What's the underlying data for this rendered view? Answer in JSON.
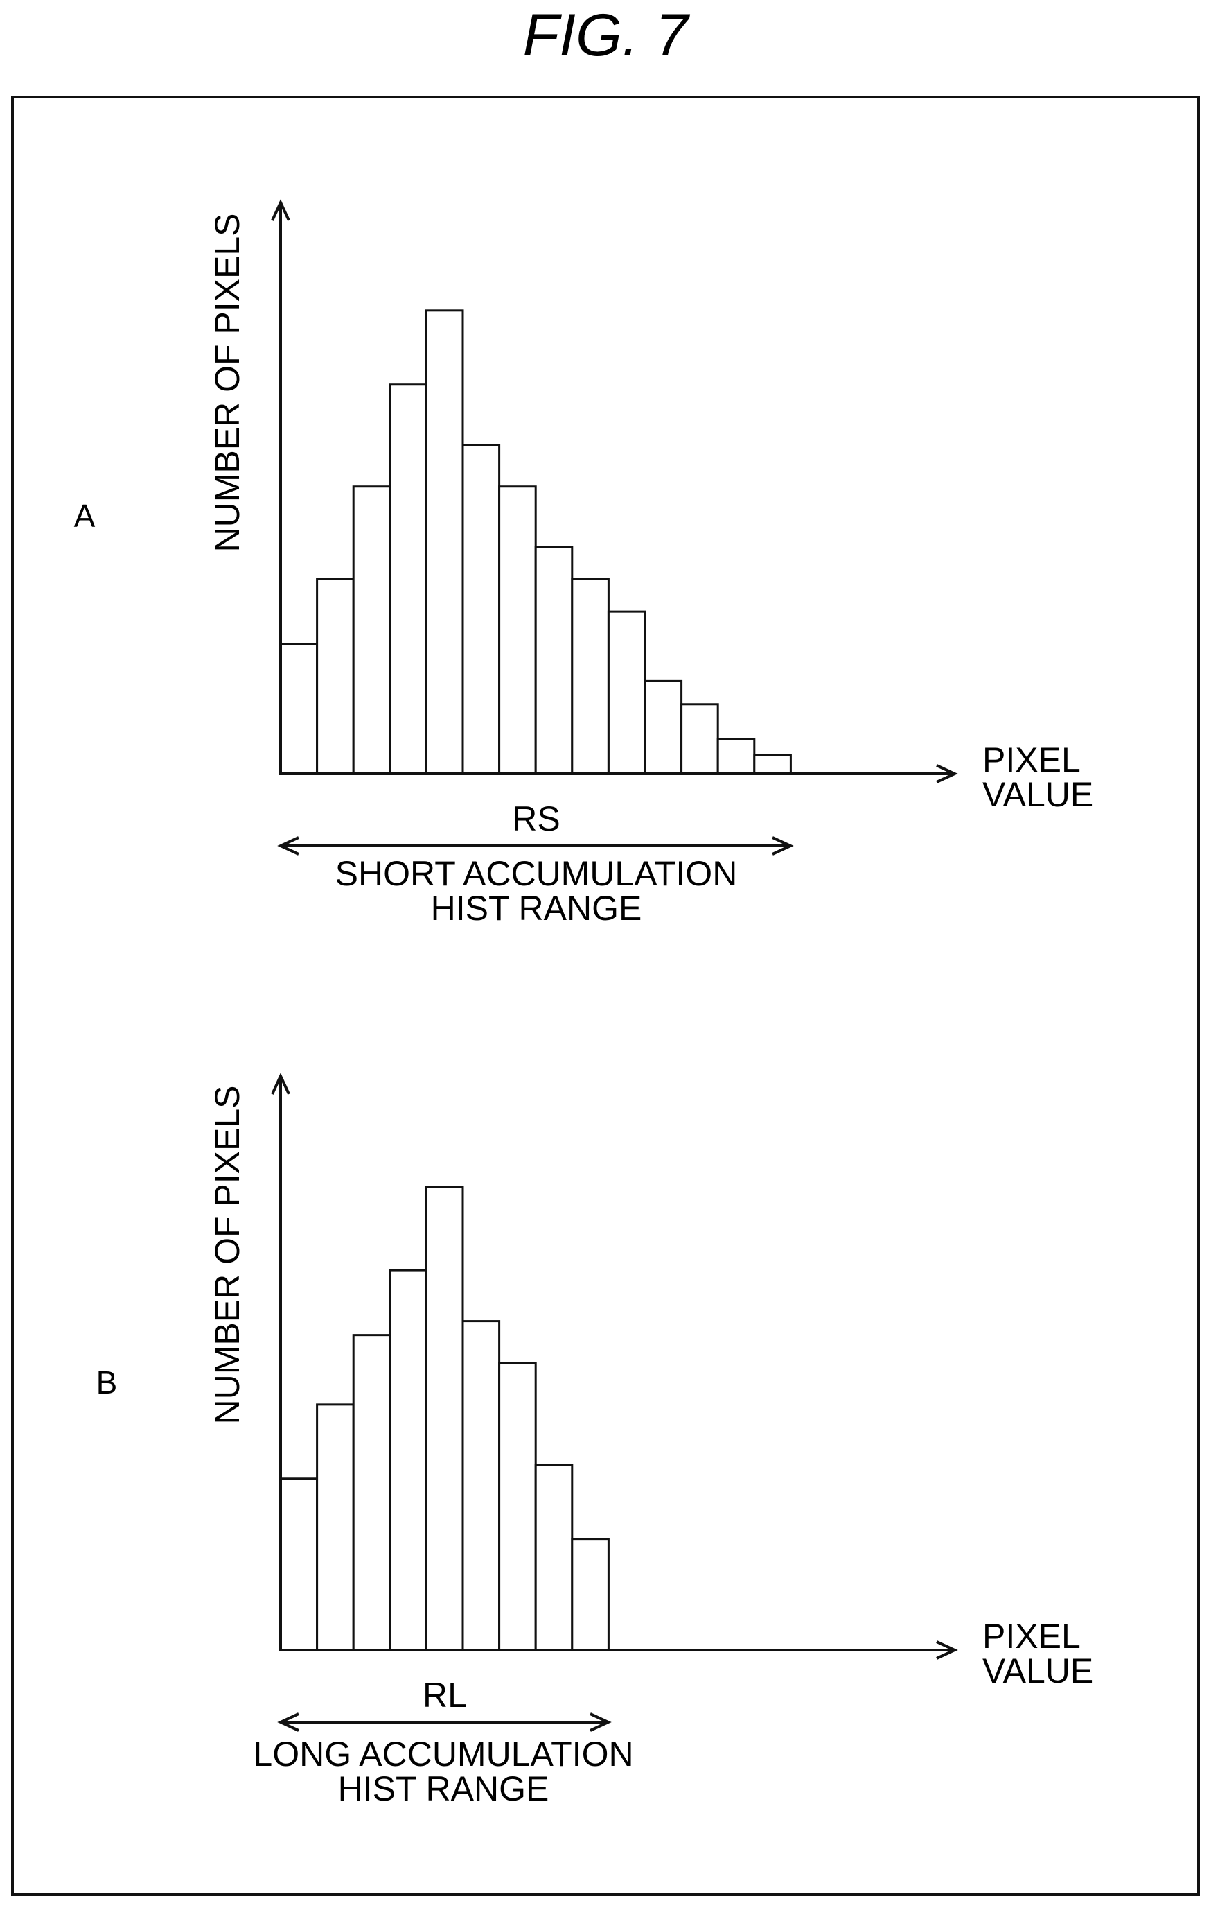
{
  "figure_title": "FIG. 7",
  "chart_data": [
    {
      "type": "bar",
      "panel_label": "A",
      "ylabel": "NUMBER OF PIXELS",
      "xlabel": [
        "PIXEL",
        "VALUE"
      ],
      "range_label": "RS",
      "range_caption": [
        "SHORT ACCUMULATION",
        "HIST RANGE"
      ],
      "values": [
        0.28,
        0.42,
        0.62,
        0.84,
        1.0,
        0.71,
        0.62,
        0.49,
        0.42,
        0.35,
        0.2,
        0.15,
        0.075,
        0.04
      ],
      "ylim": [
        0,
        1.1
      ],
      "grid": false,
      "legend": "none"
    },
    {
      "type": "bar",
      "panel_label": "B",
      "ylabel": "NUMBER OF PIXELS",
      "xlabel": [
        "PIXEL",
        "VALUE"
      ],
      "range_label": "RL",
      "range_caption": [
        "LONG ACCUMULATION",
        "HIST RANGE"
      ],
      "values": [
        0.37,
        0.53,
        0.68,
        0.82,
        1.0,
        0.71,
        0.62,
        0.4,
        0.24
      ],
      "ylim": [
        0,
        1.1
      ],
      "grid": false,
      "legend": "none"
    }
  ]
}
